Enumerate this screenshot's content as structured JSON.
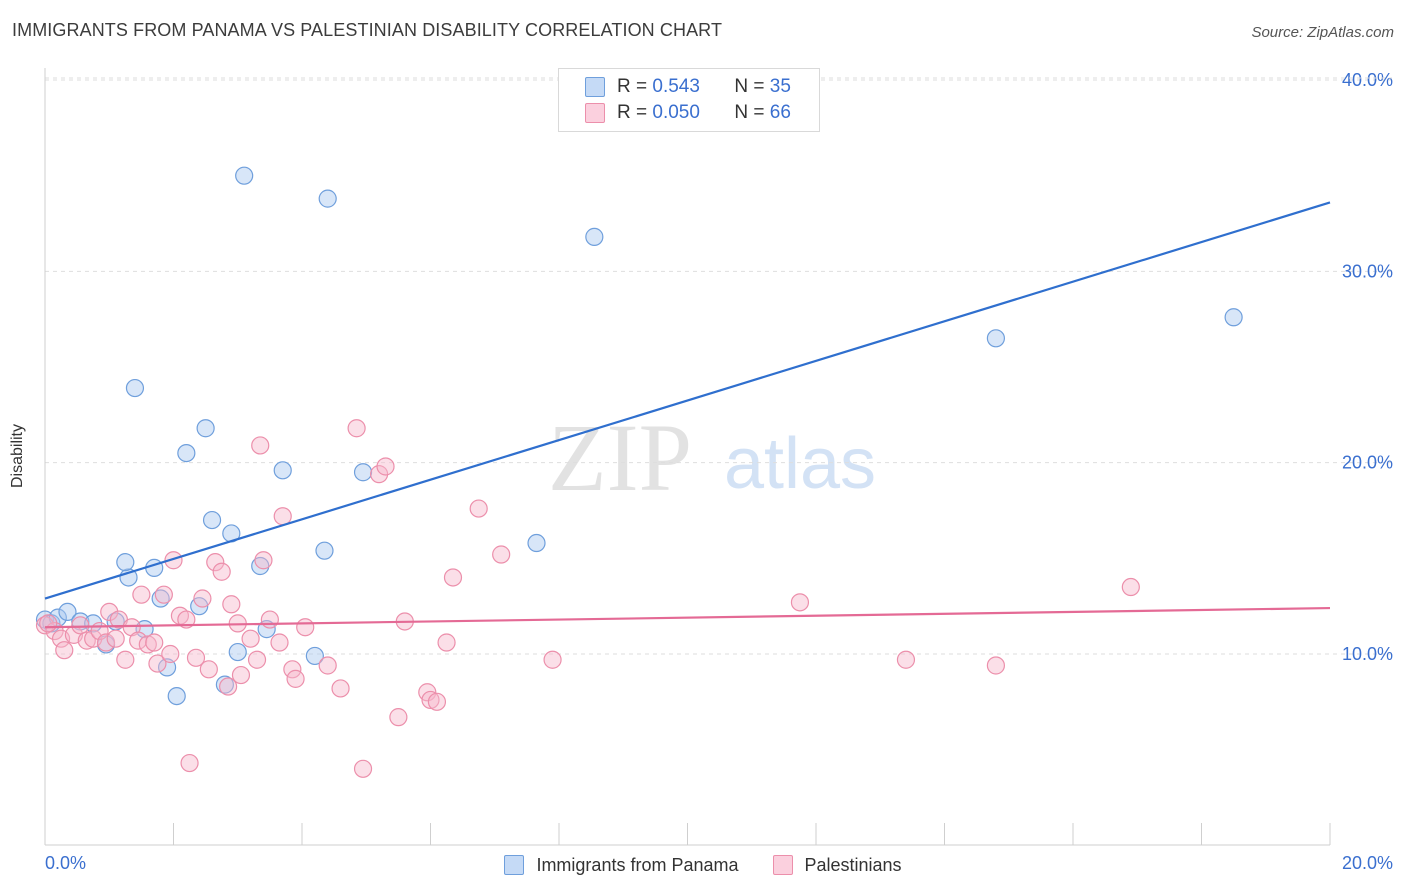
{
  "header": {
    "title": "IMMIGRANTS FROM PANAMA VS PALESTINIAN DISABILITY CORRELATION CHART",
    "source": "Source: ZipAtlas.com"
  },
  "watermark": {
    "zip": "ZIP",
    "atlas": "atlas"
  },
  "colors": {
    "blue_fill": "#a9c8ef",
    "blue_stroke": "#6f9fdc",
    "blue_line": "#2f6fce",
    "pink_fill": "#f6b8cb",
    "pink_stroke": "#ec8fab",
    "pink_line": "#e46a95",
    "axis_text": "#3a6fcf",
    "grid": "#dedede"
  },
  "legend": {
    "rows": [
      {
        "r_label": "R =",
        "r_value": "0.543",
        "n_label": "N =",
        "n_value": "35",
        "color": "blue"
      },
      {
        "r_label": "R =",
        "r_value": "0.050",
        "n_label": "N =",
        "n_value": "66",
        "color": "pink"
      }
    ]
  },
  "chart_data": {
    "type": "scatter",
    "title": "IMMIGRANTS FROM PANAMA VS PALESTINIAN DISABILITY CORRELATION CHART",
    "xlabel": "",
    "ylabel": "Disability",
    "xlim": [
      0,
      20
    ],
    "ylim": [
      0,
      42
    ],
    "x_tick_labels": [
      "0.0%",
      "20.0%"
    ],
    "y_ticks": [
      10,
      20,
      30,
      40
    ],
    "y_tick_labels": [
      "10.0%",
      "20.0%",
      "30.0%",
      "40.0%"
    ],
    "grid": "horizontal dashed",
    "legend_position": "top-center",
    "series": [
      {
        "name": "Immigrants from Panama",
        "color": "blue",
        "trend": [
          [
            0,
            12.9
          ],
          [
            20,
            33.6
          ]
        ],
        "points": [
          [
            0.0,
            11.8
          ],
          [
            0.1,
            11.6
          ],
          [
            0.2,
            11.9
          ],
          [
            0.35,
            12.2
          ],
          [
            0.55,
            11.7
          ],
          [
            0.75,
            11.6
          ],
          [
            0.95,
            10.5
          ],
          [
            1.1,
            11.7
          ],
          [
            1.3,
            14.0
          ],
          [
            1.25,
            14.8
          ],
          [
            1.55,
            11.3
          ],
          [
            1.7,
            14.5
          ],
          [
            1.8,
            12.9
          ],
          [
            1.9,
            9.3
          ],
          [
            2.05,
            7.8
          ],
          [
            1.4,
            23.9
          ],
          [
            2.2,
            20.5
          ],
          [
            2.5,
            21.8
          ],
          [
            2.4,
            12.5
          ],
          [
            2.6,
            17.0
          ],
          [
            2.8,
            8.4
          ],
          [
            2.9,
            16.3
          ],
          [
            3.0,
            10.1
          ],
          [
            3.1,
            35.0
          ],
          [
            3.35,
            14.6
          ],
          [
            3.45,
            11.3
          ],
          [
            3.7,
            19.6
          ],
          [
            4.2,
            9.9
          ],
          [
            4.35,
            15.4
          ],
          [
            4.4,
            33.8
          ],
          [
            4.95,
            19.5
          ],
          [
            7.65,
            15.8
          ],
          [
            8.55,
            31.8
          ],
          [
            14.8,
            26.5
          ],
          [
            18.5,
            27.6
          ]
        ]
      },
      {
        "name": "Palestinians",
        "color": "pink",
        "trend": [
          [
            0,
            11.4
          ],
          [
            20,
            12.4
          ]
        ],
        "points": [
          [
            0.0,
            11.5
          ],
          [
            0.15,
            11.2
          ],
          [
            0.25,
            10.8
          ],
          [
            0.3,
            10.2
          ],
          [
            0.45,
            11.0
          ],
          [
            0.55,
            11.5
          ],
          [
            0.65,
            10.7
          ],
          [
            0.75,
            10.8
          ],
          [
            0.85,
            11.2
          ],
          [
            0.95,
            10.6
          ],
          [
            1.0,
            12.2
          ],
          [
            1.1,
            10.8
          ],
          [
            1.15,
            11.8
          ],
          [
            1.25,
            9.7
          ],
          [
            1.35,
            11.4
          ],
          [
            1.45,
            10.7
          ],
          [
            1.5,
            13.1
          ],
          [
            1.6,
            10.5
          ],
          [
            1.7,
            10.6
          ],
          [
            1.75,
            9.5
          ],
          [
            1.85,
            13.1
          ],
          [
            1.95,
            10.0
          ],
          [
            2.0,
            14.9
          ],
          [
            2.1,
            12.0
          ],
          [
            2.2,
            11.8
          ],
          [
            2.25,
            4.3
          ],
          [
            2.35,
            9.8
          ],
          [
            2.45,
            12.9
          ],
          [
            2.55,
            9.2
          ],
          [
            2.65,
            14.8
          ],
          [
            2.75,
            14.3
          ],
          [
            2.85,
            8.3
          ],
          [
            2.9,
            12.6
          ],
          [
            3.0,
            11.6
          ],
          [
            3.05,
            8.9
          ],
          [
            3.2,
            10.8
          ],
          [
            3.3,
            9.7
          ],
          [
            3.35,
            20.9
          ],
          [
            3.4,
            14.9
          ],
          [
            3.5,
            11.8
          ],
          [
            3.65,
            10.6
          ],
          [
            3.7,
            17.2
          ],
          [
            3.85,
            9.2
          ],
          [
            3.9,
            8.7
          ],
          [
            4.05,
            11.4
          ],
          [
            4.4,
            9.4
          ],
          [
            4.6,
            8.2
          ],
          [
            4.85,
            21.8
          ],
          [
            4.95,
            4.0
          ],
          [
            5.2,
            19.4
          ],
          [
            5.3,
            19.8
          ],
          [
            5.5,
            6.7
          ],
          [
            5.6,
            11.7
          ],
          [
            5.95,
            8.0
          ],
          [
            6.0,
            7.6
          ],
          [
            6.1,
            7.5
          ],
          [
            6.25,
            10.6
          ],
          [
            6.35,
            14.0
          ],
          [
            6.75,
            17.6
          ],
          [
            7.1,
            15.2
          ],
          [
            7.9,
            9.7
          ],
          [
            11.75,
            12.7
          ],
          [
            13.4,
            9.7
          ],
          [
            14.8,
            9.4
          ],
          [
            16.9,
            13.5
          ],
          [
            0.05,
            11.6
          ]
        ]
      }
    ]
  },
  "bottom_legend": {
    "items": [
      {
        "label": "Immigrants from Panama",
        "color": "blue"
      },
      {
        "label": "Palestinians",
        "color": "pink"
      }
    ]
  }
}
